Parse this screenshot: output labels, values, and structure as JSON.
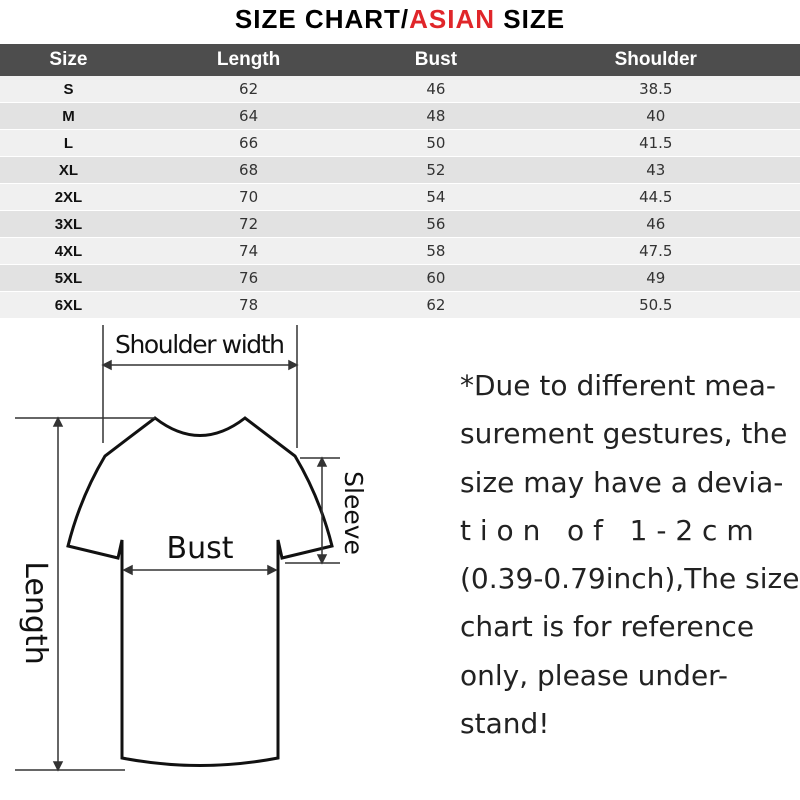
{
  "title": {
    "main": "SIZE CHART/",
    "highlight": "ASIAN",
    "end": "SIZE"
  },
  "table": {
    "headers": [
      "Size",
      "Length",
      "Bust",
      "Shoulder"
    ],
    "rows": [
      [
        "S",
        62,
        46,
        38.5
      ],
      [
        "M",
        64,
        48,
        40
      ],
      [
        "L",
        66,
        50,
        41.5
      ],
      [
        "XL",
        68,
        52,
        43
      ],
      [
        "2XL",
        70,
        54,
        44.5
      ],
      [
        "3XL",
        72,
        56,
        46
      ],
      [
        "4XL",
        74,
        58,
        47.5
      ],
      [
        "5XL",
        76,
        60,
        49
      ],
      [
        "6XL",
        78,
        62,
        50.5
      ]
    ]
  },
  "diagram": {
    "shoulder": "Shoulder width",
    "bust": "Bust",
    "sleeve": "Sleeve",
    "length": "Length"
  },
  "note": {
    "lines": [
      "*Due to different mea-",
      "surement gestures, the",
      "size may have a devia-",
      "t i o n   o f   1 - 2 c m",
      "(0.39-0.79inch),The size",
      "chart is for reference",
      "only, please under-",
      "stand!"
    ]
  }
}
